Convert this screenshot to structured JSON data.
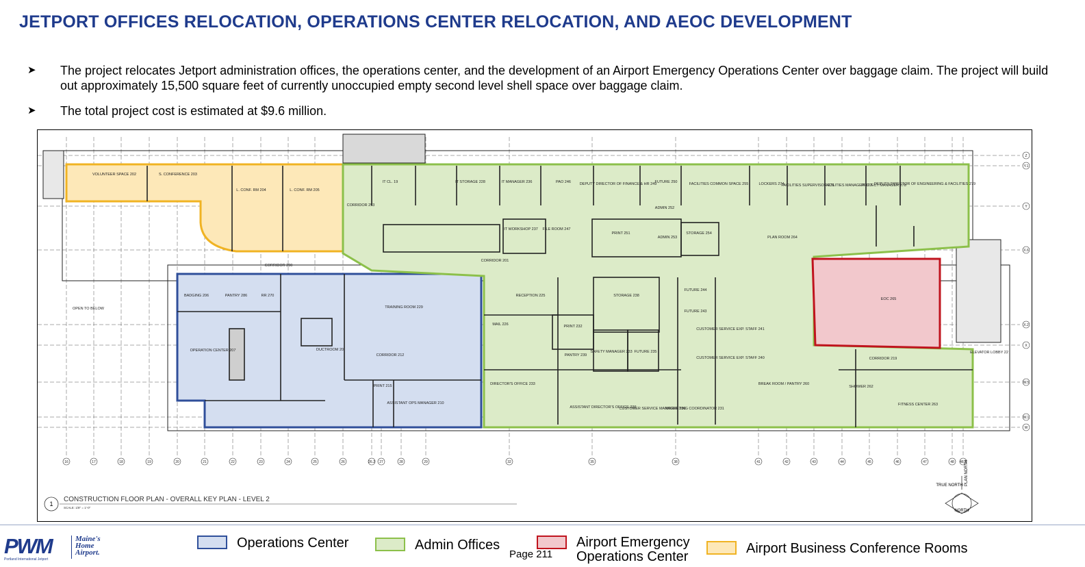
{
  "title": "JETPORT OFFICES RELOCATION, OPERATIONS CENTER RELOCATION, AND AEOC DEVELOPMENT",
  "bullets": [
    "The project relocates Jetport administration offices, the operations center, and the development of an Airport Emergency Operations Center over baggage claim.  The project will build out approximately 15,500 square feet of currently unoccupied empty second level shell space over baggage claim.",
    "The total project cost is estimated at $9.6 million."
  ],
  "plan": {
    "caption": "CONSTRUCTION FLOOR PLAN - OVERALL KEY PLAN - LEVEL 2",
    "scale": "SCALE: 1/8\" = 1'-0\"",
    "caption_number": "1",
    "open_to_below": "OPEN TO BELOW",
    "north_label": "NORTH",
    "true_north": "TRUE NORTH",
    "plan_north": "PLAN NORTH",
    "rooms": {
      "volunteer": "VOLUNTEER SPACE 202",
      "s_conference": "S. CONFERENCE 203",
      "l_conf_204": "L. CONF. RM 204",
      "l_conf_205": "L. CONF. RM 205",
      "it_cl": "IT CL. 19",
      "it_storage": "IT STORAGE 228",
      "it_manager": "IT MANAGER 236",
      "pao": "PAO 246",
      "deputy_finance": "DEPUTY DIRECTOR OF FINANCE & HR 249",
      "future_250": "FUTURE 250",
      "facilities_common": "FACILITIES COMMON SPACE 255",
      "lockers": "LOCKERS 274",
      "facilities_supervisor": "FACILITIES SUPERVISOR 276",
      "facilities_manager": "FACILITIES MANAGER 277",
      "project_manager": "PROJECT MANAGER 278",
      "deputy_engineering": "DEPUTY DIRECTOR OF ENGINEERING & FACILITIES 279",
      "corridor_top": "CORRIDOR 253",
      "corridor_mid": "CORRIDOR 200",
      "corridor_main": "CORRIDOR 201",
      "corridor_212": "CORRIDOR 212",
      "corridor_219": "CORRIDOR 219",
      "badging": "BADGING 206",
      "pantry_ops": "PANTRY 286",
      "rr_ops": "RR 270",
      "operation_center": "OPERATION CENTER 207",
      "training": "TRAINING ROOM 229",
      "ductroom": "DUCTROOM 20",
      "print_215": "PRINT 215",
      "assistant_ops": "ASSISTANT OPS MANAGER 210",
      "reception": "RECEPTION 225",
      "storage_238": "STORAGE 238",
      "mail": "MAIL 226",
      "print_230": "PRINT 232",
      "pantry_239": "PANTRY 239",
      "safety_manager": "SAFETY MANAGER 233",
      "future_235": "FUTURE 235",
      "directors_office": "DIRECTOR'S OFFICE 233",
      "asst_director": "ASSISTANT DIRECTOR'S OFFICE 236",
      "customer_service_mgr": "CUSTOMER SERVICE MANAGER 236",
      "marketing": "MARKETING COORDINATOR 231",
      "future_244": "FUTURE 244",
      "future_243": "FUTURE 243",
      "cs_staff_241": "CUSTOMER SERVICE EXP. STAFF 241",
      "cs_staff_240": "CUSTOMER SERVICE EXP. STAFF 240",
      "break_room": "BREAK ROOM / PANTRY 260",
      "plan_room": "PLAN ROOM 264",
      "eoc": "EOC 265",
      "shower": "SHOWER 262",
      "fitness": "FITNESS CENTER 263",
      "elevator_lobby": "ELEVATOR LOBBY 22",
      "file_room": "FILE ROOM 247",
      "it_workshop": "IT WORKSHOP 237",
      "print_251": "PRINT 251",
      "admin_252": "ADMIN 252",
      "admin_253": "ADMIN 253",
      "storage_254": "STORAGE 254"
    },
    "grid_columns": [
      "16",
      "17",
      "18",
      "19",
      "20",
      "21",
      "22",
      "23",
      "24",
      "25",
      "26",
      "26.2",
      "27",
      "28",
      "29",
      "32",
      "35",
      "38",
      "41",
      "42",
      "43",
      "44",
      "45",
      "46",
      "47",
      "48",
      "48.5"
    ],
    "grid_rows": [
      "Z",
      "Y.1",
      "Y",
      "X.6",
      "X.2",
      "X",
      "W.5",
      "W.1",
      "W"
    ]
  },
  "legend": {
    "operations": "Operations Center",
    "admin": "Admin Offices",
    "aeoc": "Airport Emergency Operations Center",
    "conference": "Airport Business Conference Rooms"
  },
  "colors": {
    "operations_fill": "#d4def0",
    "operations_stroke": "#2f4f9a",
    "admin_fill": "#dcebc8",
    "admin_stroke": "#8cc04a",
    "aeoc_fill": "#f2c8cc",
    "aeoc_stroke": "#c0141e",
    "conference_fill": "#fde8b8",
    "conference_stroke": "#f0b323"
  },
  "logo": {
    "mark": "PWM",
    "tagline": "Maine's Home Airport.",
    "sub": "Portland International Jetport"
  },
  "page_number": "Page 211"
}
